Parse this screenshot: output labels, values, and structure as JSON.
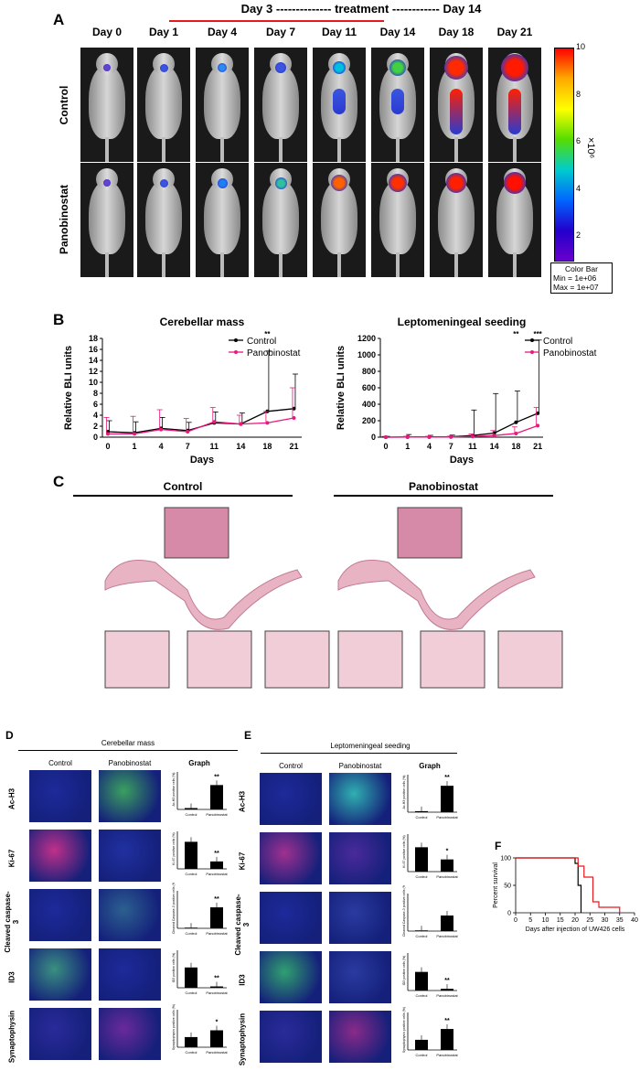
{
  "panelA": {
    "letter": "A",
    "treatment_banner": "Day 3 -------------- treatment ------------ Day 14",
    "days": [
      "Day 0",
      "Day 1",
      "Day 4",
      "Day 7",
      "Day 11",
      "Day 14",
      "Day 18",
      "Day 21"
    ],
    "rows": [
      "Control",
      "Panobinostat"
    ],
    "colorbar": {
      "ticks": [
        "10",
        "8",
        "6",
        "4",
        "2"
      ],
      "unit": "×10⁶",
      "caption": [
        "Color Bar",
        "Min = 1e+06",
        "Max = 1e+07"
      ],
      "colors": [
        "#ff0000",
        "#ffaa00",
        "#ffff00",
        "#55dd00",
        "#00cccc",
        "#0066ff",
        "#2200cc",
        "#6a00cc"
      ]
    }
  },
  "panelB": {
    "letter": "B",
    "chart_data": [
      {
        "type": "line",
        "title": "Cerebellar mass",
        "xlabel": "Days",
        "ylabel": "Relative BLI units",
        "x": [
          "0",
          "1",
          "4",
          "7",
          "11",
          "14",
          "18",
          "21"
        ],
        "ylim": [
          0,
          18
        ],
        "yticks": [
          "0",
          "2",
          "4",
          "6",
          "8",
          "10",
          "12",
          "14",
          "16",
          "18"
        ],
        "legend_position": "top-right",
        "series": [
          {
            "name": "Control",
            "color": "#000000",
            "values": [
              1.0,
              0.8,
              1.6,
              1.2,
              2.6,
              2.4,
              4.7,
              5.2
            ],
            "err": [
              2.0,
              2.0,
              2.0,
              1.5,
              2.0,
              2.0,
              11.0,
              6.3
            ]
          },
          {
            "name": "Panobinostat",
            "color": "#e8197d",
            "values": [
              0.6,
              0.6,
              1.4,
              1.0,
              2.8,
              2.4,
              2.6,
              3.5
            ],
            "err": [
              3.0,
              3.2,
              3.6,
              2.4,
              2.6,
              1.6,
              2.1,
              5.5
            ]
          }
        ],
        "annotations": [
          {
            "x": "18",
            "text": "**"
          }
        ]
      },
      {
        "type": "line",
        "title": "Leptomeningeal seeding",
        "xlabel": "Days",
        "ylabel": "Relative BLI units",
        "x": [
          "0",
          "1",
          "4",
          "7",
          "11",
          "14",
          "18",
          "21"
        ],
        "ylim": [
          0,
          1200
        ],
        "yticks": [
          "0",
          "200",
          "400",
          "600",
          "800",
          "1000",
          "1200"
        ],
        "legend_position": "top-right",
        "series": [
          {
            "name": "Control",
            "color": "#000000",
            "values": [
              0,
              2,
              2,
              5,
              20,
              50,
              180,
              290
            ],
            "err": [
              10,
              30,
              20,
              20,
              310,
              480,
              380,
              890
            ]
          },
          {
            "name": "Panobinostat",
            "color": "#e8197d",
            "values": [
              0,
              1,
              1,
              2,
              8,
              20,
              45,
              140
            ],
            "err": [
              10,
              10,
              10,
              10,
              30,
              60,
              80,
              220
            ]
          }
        ],
        "annotations": [
          {
            "x": "18",
            "text": "**"
          },
          {
            "x": "21",
            "text": "***"
          }
        ]
      }
    ]
  },
  "panelC": {
    "letter": "C",
    "groups": [
      "Control",
      "Panobinostat"
    ]
  },
  "panelD": {
    "letter": "D",
    "title": "Cerebellar mass",
    "cols": [
      "Control",
      "Panobinostat",
      "Graph"
    ],
    "rows": [
      "Ac-H3",
      "Ki-67",
      "Cleaved caspase-3",
      "ID3",
      "Synaptophysin"
    ],
    "bars": [
      {
        "ylabel": "Ac-H3 positive cells (%)",
        "sig": "**",
        "values": [
          0.04,
          0.72
        ]
      },
      {
        "ylabel": "Ki-67 positive cells (%)",
        "sig": "**",
        "values": [
          0.8,
          0.22
        ]
      },
      {
        "ylabel": "Cleaved Caspase-3 positive cells (%)",
        "sig": "**",
        "values": [
          0.02,
          0.62
        ]
      },
      {
        "ylabel": "ID3 positive cells (%)",
        "sig": "**",
        "values": [
          0.6,
          0.04
        ]
      },
      {
        "ylabel": "Synaptophysin positive cells (%)",
        "sig": "*",
        "values": [
          0.3,
          0.5
        ]
      }
    ],
    "xcats": [
      "Control",
      "Panobinostat"
    ]
  },
  "panelE": {
    "letter": "E",
    "title": "Leptomeningeal seeding",
    "cols": [
      "Control",
      "Panobinostat",
      "Graph"
    ],
    "rows": [
      "Ac-H3",
      "Ki-67",
      "Cleaved caspase-3",
      "ID3",
      "Synaptophysin"
    ],
    "bars": [
      {
        "ylabel": "Ac-H3 positive cells (%)",
        "sig": "**",
        "values": [
          0.03,
          0.78
        ]
      },
      {
        "ylabel": "Ki-67 positive cells (%)",
        "sig": "*",
        "values": [
          0.72,
          0.36
        ]
      },
      {
        "ylabel": "Cleaved Caspase-3 positive cells (%)",
        "sig": "",
        "values": [
          0.02,
          0.46
        ]
      },
      {
        "ylabel": "ID3 positive cells (%)",
        "sig": "**",
        "values": [
          0.55,
          0.05
        ]
      },
      {
        "ylabel": "Synaptophysin positive cells (%)",
        "sig": "**",
        "values": [
          0.3,
          0.62
        ]
      }
    ],
    "xcats": [
      "Control",
      "Panobinostat"
    ]
  },
  "panelF": {
    "letter": "F",
    "chart_data": {
      "type": "line",
      "ylabel": "Percent survival",
      "xlabel": "Days after injection of UW426 cells",
      "xlim": [
        0,
        40
      ],
      "ylim": [
        0,
        100
      ],
      "xticks": [
        "0",
        "5",
        "10",
        "15",
        "20",
        "25",
        "30",
        "35",
        "40"
      ],
      "yticks": [
        "0",
        "50",
        "100"
      ],
      "series": [
        {
          "color": "#000000",
          "steps": [
            [
              0,
              100
            ],
            [
              20,
              100
            ],
            [
              20,
              90
            ],
            [
              21,
              90
            ],
            [
              21,
              50
            ],
            [
              22,
              50
            ],
            [
              22,
              0
            ]
          ]
        },
        {
          "color": "#e8191e",
          "steps": [
            [
              0,
              100
            ],
            [
              21,
              100
            ],
            [
              21,
              85
            ],
            [
              23,
              85
            ],
            [
              23,
              65
            ],
            [
              26,
              65
            ],
            [
              26,
              20
            ],
            [
              28,
              20
            ],
            [
              28,
              10
            ],
            [
              35,
              10
            ],
            [
              35,
              0
            ]
          ]
        }
      ]
    }
  }
}
